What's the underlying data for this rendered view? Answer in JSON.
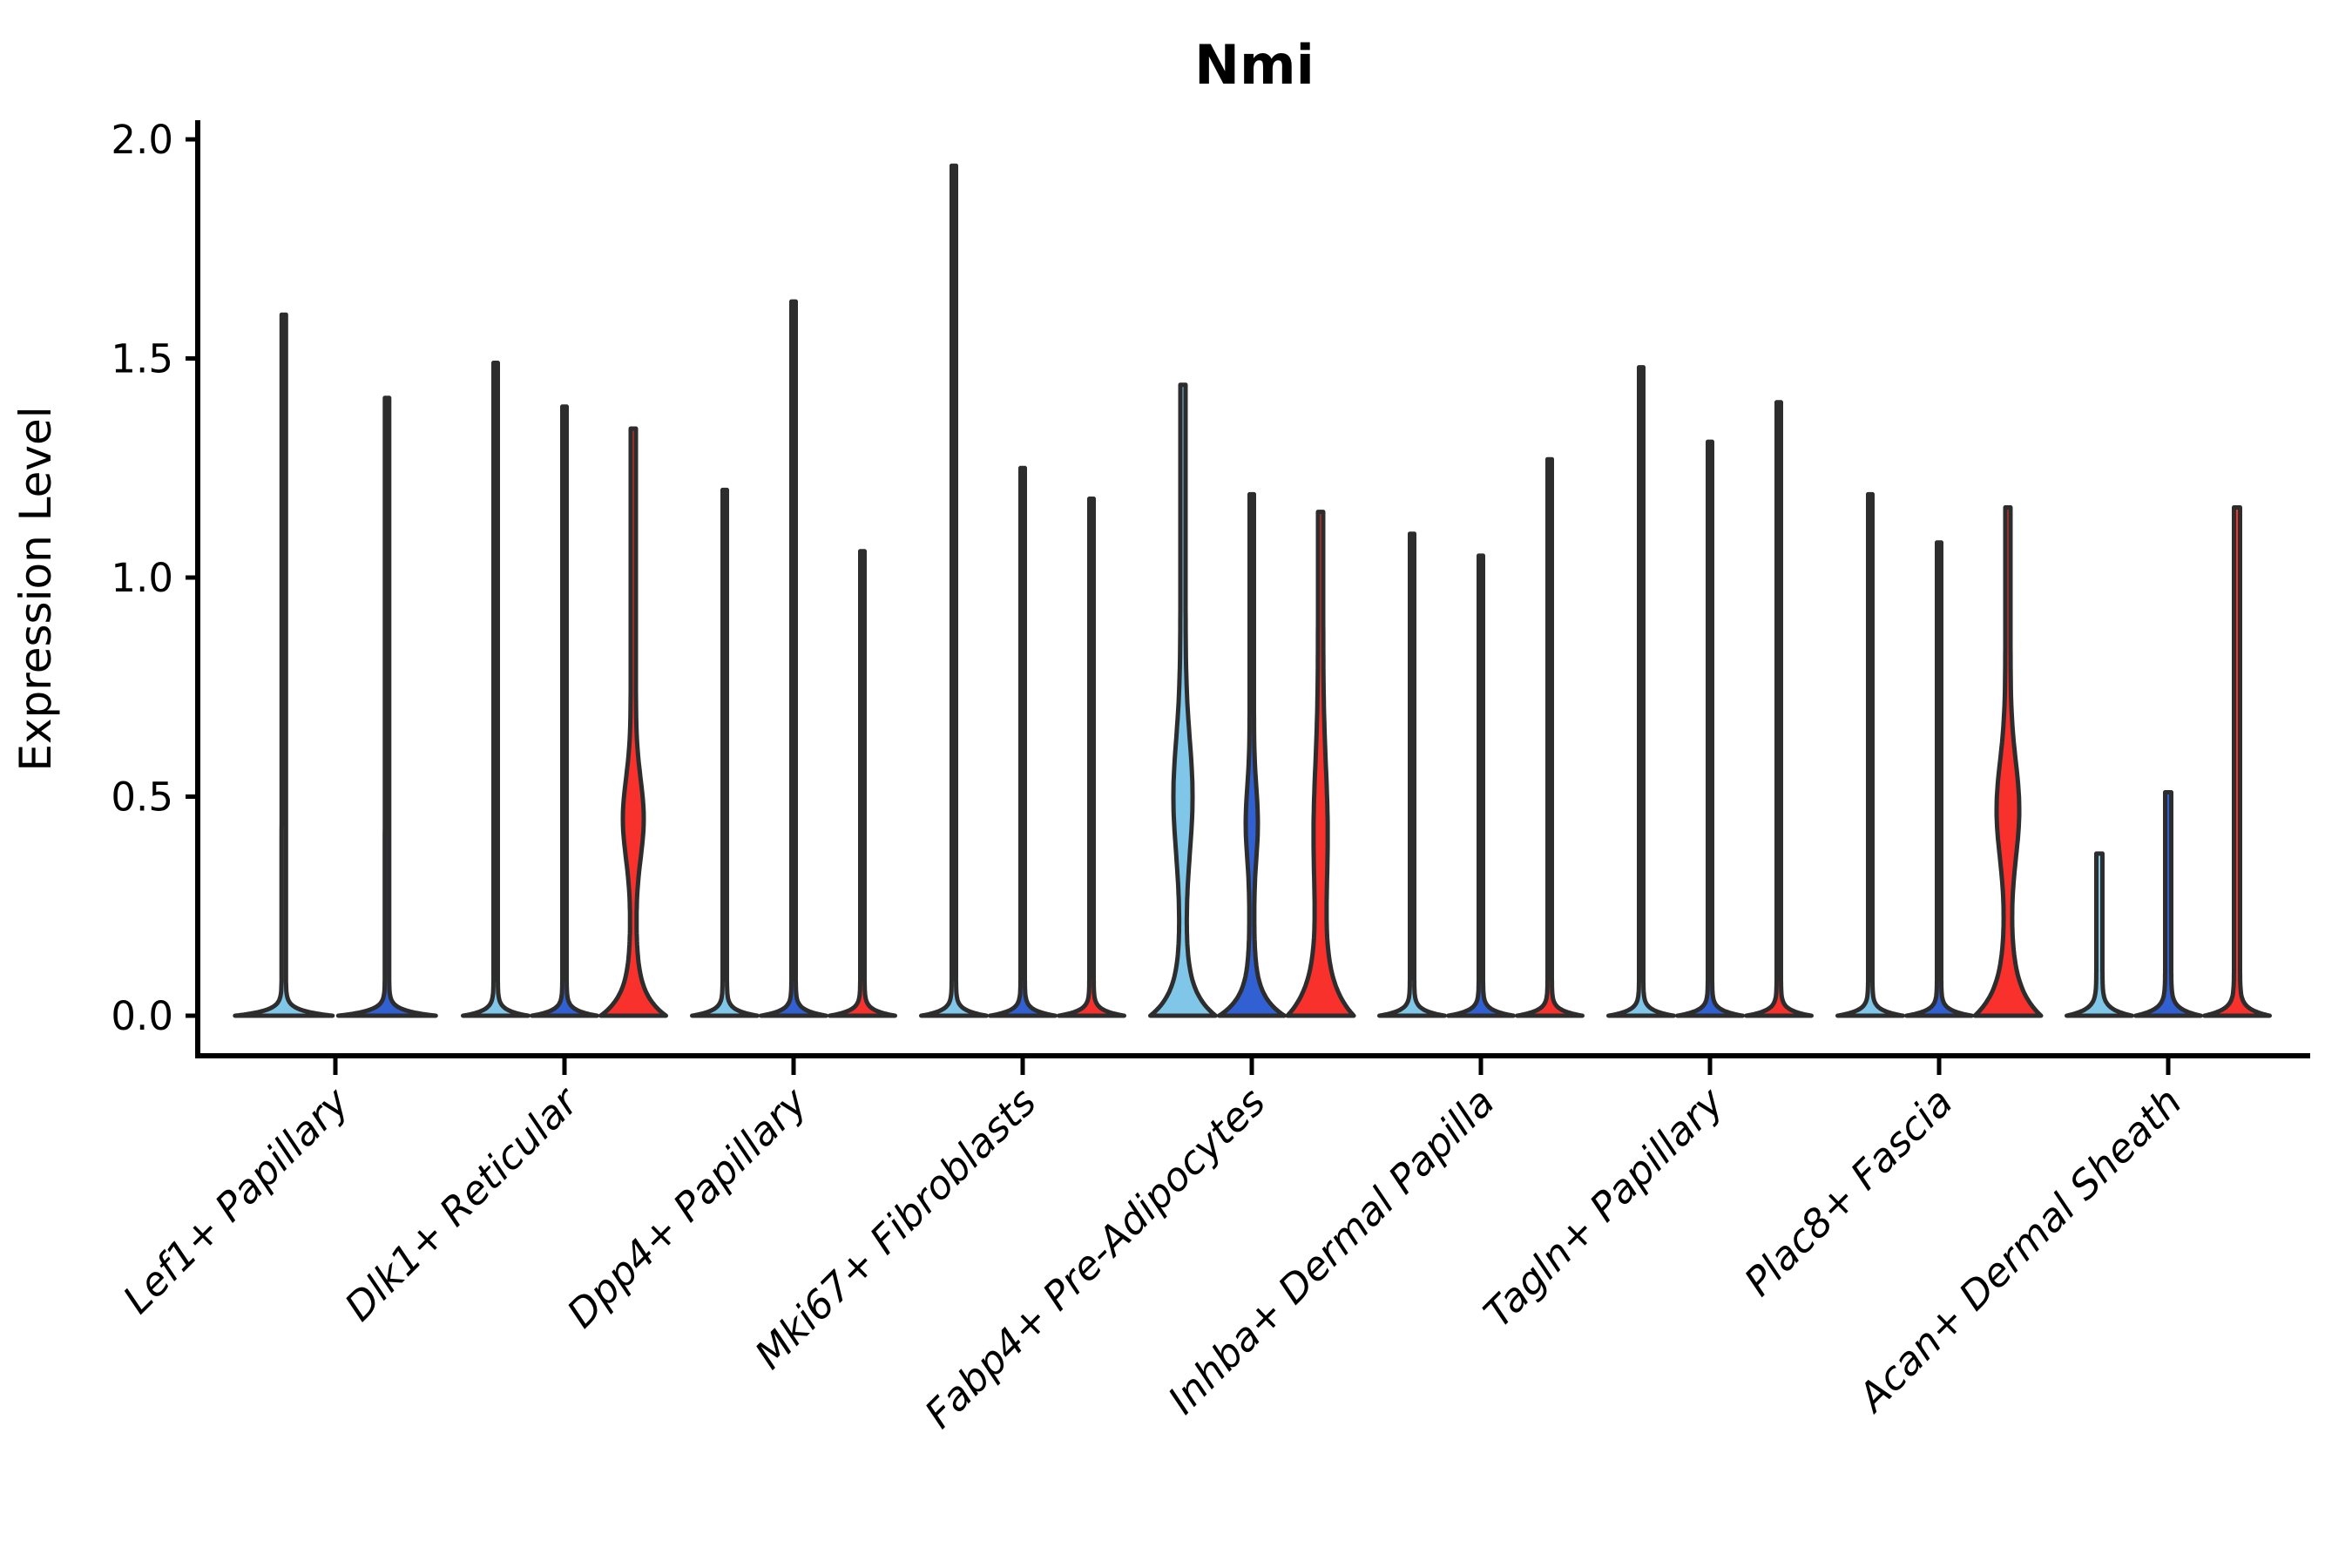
{
  "chart_data": {
    "type": "violin",
    "title": "Nmi",
    "xlabel": "",
    "ylabel": "Expression Level",
    "ylim": [
      0,
      2.0
    ],
    "yticks": [
      0.0,
      0.5,
      1.0,
      1.5,
      2.0
    ],
    "ytick_labels": [
      "0.0",
      "0.5",
      "1.0",
      "1.5",
      "2.0"
    ],
    "grid": "off",
    "legend": "none",
    "categories": [
      "Lef1+ Papillary",
      "Dlk1+ Reticular",
      "Dpp4+ Papillary",
      "Mki67+ Fibroblasts",
      "Fabp4+ Pre-Adipocytes",
      "Inhba+ Dermal Papilla",
      "Tagln+ Papillary",
      "Plac8+ Fascia",
      "Acan+ Dermal Sheath"
    ],
    "groups": [
      {
        "name": "group-1",
        "color": "#7FC6E8"
      },
      {
        "name": "group-2",
        "color": "#3060D2"
      },
      {
        "name": "group-3",
        "color": "#F9312C"
      }
    ],
    "outline_color": "#2D2D2D",
    "axis_color": "#000000",
    "violins": [
      {
        "category": 0,
        "group": 0,
        "max_expression": 1.6,
        "profile": {
          "stem_hw": 2.5,
          "base_hw": 56,
          "flare_decay": 0.012,
          "bump_amp": 0,
          "bump_center": 0,
          "bump_width": 1
        }
      },
      {
        "category": 0,
        "group": 1,
        "max_expression": 1.41,
        "profile": {
          "stem_hw": 2.5,
          "base_hw": 56,
          "flare_decay": 0.012,
          "bump_amp": 0,
          "bump_center": 0,
          "bump_width": 1
        }
      },
      {
        "category": 1,
        "group": 0,
        "max_expression": 1.49,
        "profile": {
          "stem_hw": 2.5,
          "base_hw": 37.5,
          "flare_decay": 0.012,
          "bump_amp": 0,
          "bump_center": 0,
          "bump_width": 1
        }
      },
      {
        "category": 1,
        "group": 1,
        "max_expression": 1.39,
        "profile": {
          "stem_hw": 2.5,
          "base_hw": 37.5,
          "flare_decay": 0.012,
          "bump_amp": 0,
          "bump_center": 0,
          "bump_width": 1
        }
      },
      {
        "category": 1,
        "group": 2,
        "max_expression": 1.34,
        "profile": {
          "stem_hw": 3,
          "base_hw": 37.5,
          "flare_decay": 0.05,
          "bump_amp": 9,
          "bump_center": 0.45,
          "bump_width": 0.09
        }
      },
      {
        "category": 2,
        "group": 0,
        "max_expression": 1.2,
        "profile": {
          "stem_hw": 2.5,
          "base_hw": 37.5,
          "flare_decay": 0.012,
          "bump_amp": 0,
          "bump_center": 0,
          "bump_width": 1
        }
      },
      {
        "category": 2,
        "group": 1,
        "max_expression": 1.63,
        "profile": {
          "stem_hw": 2.5,
          "base_hw": 37.5,
          "flare_decay": 0.012,
          "bump_amp": 0,
          "bump_center": 0,
          "bump_width": 1
        }
      },
      {
        "category": 2,
        "group": 2,
        "max_expression": 1.06,
        "profile": {
          "stem_hw": 2.5,
          "base_hw": 37.5,
          "flare_decay": 0.012,
          "bump_amp": 0,
          "bump_center": 0,
          "bump_width": 1
        }
      },
      {
        "category": 3,
        "group": 0,
        "max_expression": 1.94,
        "profile": {
          "stem_hw": 2.5,
          "base_hw": 37.5,
          "flare_decay": 0.012,
          "bump_amp": 0,
          "bump_center": 0,
          "bump_width": 1
        }
      },
      {
        "category": 3,
        "group": 1,
        "max_expression": 1.25,
        "profile": {
          "stem_hw": 2.5,
          "base_hw": 37.5,
          "flare_decay": 0.012,
          "bump_amp": 0,
          "bump_center": 0,
          "bump_width": 1
        }
      },
      {
        "category": 3,
        "group": 2,
        "max_expression": 1.18,
        "profile": {
          "stem_hw": 2.5,
          "base_hw": 37.5,
          "flare_decay": 0.012,
          "bump_amp": 0,
          "bump_center": 0,
          "bump_width": 1
        }
      },
      {
        "category": 4,
        "group": 0,
        "max_expression": 1.44,
        "profile": {
          "stem_hw": 3,
          "base_hw": 37.5,
          "flare_decay": 0.055,
          "bump_amp": 8,
          "bump_center": 0.5,
          "bump_width": 0.13
        }
      },
      {
        "category": 4,
        "group": 1,
        "max_expression": 1.19,
        "profile": {
          "stem_hw": 2.5,
          "base_hw": 37.5,
          "flare_decay": 0.045,
          "bump_amp": 4.5,
          "bump_center": 0.44,
          "bump_width": 0.08
        }
      },
      {
        "category": 4,
        "group": 2,
        "max_expression": 1.15,
        "profile": {
          "stem_hw": 3,
          "base_hw": 38,
          "flare_decay": 0.075,
          "bump_amp": 5,
          "bump_center": 0.42,
          "bump_width": 0.15
        }
      },
      {
        "category": 5,
        "group": 0,
        "max_expression": 1.1,
        "profile": {
          "stem_hw": 2.5,
          "base_hw": 37.5,
          "flare_decay": 0.012,
          "bump_amp": 0,
          "bump_center": 0,
          "bump_width": 1
        }
      },
      {
        "category": 5,
        "group": 1,
        "max_expression": 1.05,
        "profile": {
          "stem_hw": 2.5,
          "base_hw": 37.5,
          "flare_decay": 0.012,
          "bump_amp": 0,
          "bump_center": 0,
          "bump_width": 1
        }
      },
      {
        "category": 5,
        "group": 2,
        "max_expression": 1.27,
        "profile": {
          "stem_hw": 2.5,
          "base_hw": 37.5,
          "flare_decay": 0.012,
          "bump_amp": 0,
          "bump_center": 0,
          "bump_width": 1
        }
      },
      {
        "category": 6,
        "group": 0,
        "max_expression": 1.48,
        "profile": {
          "stem_hw": 2.5,
          "base_hw": 37.5,
          "flare_decay": 0.012,
          "bump_amp": 0,
          "bump_center": 0,
          "bump_width": 1
        }
      },
      {
        "category": 6,
        "group": 1,
        "max_expression": 1.31,
        "profile": {
          "stem_hw": 2.5,
          "base_hw": 37.5,
          "flare_decay": 0.012,
          "bump_amp": 0,
          "bump_center": 0,
          "bump_width": 1
        }
      },
      {
        "category": 6,
        "group": 2,
        "max_expression": 1.4,
        "profile": {
          "stem_hw": 2.5,
          "base_hw": 37.5,
          "flare_decay": 0.012,
          "bump_amp": 0,
          "bump_center": 0,
          "bump_width": 1
        }
      },
      {
        "category": 7,
        "group": 0,
        "max_expression": 1.19,
        "profile": {
          "stem_hw": 2.5,
          "base_hw": 37.5,
          "flare_decay": 0.012,
          "bump_amp": 0,
          "bump_center": 0,
          "bump_width": 1
        }
      },
      {
        "category": 7,
        "group": 1,
        "max_expression": 1.08,
        "profile": {
          "stem_hw": 2.5,
          "base_hw": 37.5,
          "flare_decay": 0.012,
          "bump_amp": 0,
          "bump_center": 0,
          "bump_width": 1
        }
      },
      {
        "category": 7,
        "group": 2,
        "max_expression": 1.16,
        "profile": {
          "stem_hw": 3,
          "base_hw": 38,
          "flare_decay": 0.065,
          "bump_amp": 10,
          "bump_center": 0.47,
          "bump_width": 0.11
        }
      },
      {
        "category": 8,
        "group": 0,
        "max_expression": 0.37,
        "profile": {
          "stem_hw": 3.5,
          "base_hw": 37.5,
          "flare_decay": 0.015,
          "bump_amp": 0,
          "bump_center": 0,
          "bump_width": 1
        }
      },
      {
        "category": 8,
        "group": 1,
        "max_expression": 0.51,
        "profile": {
          "stem_hw": 3.5,
          "base_hw": 37.5,
          "flare_decay": 0.015,
          "bump_amp": 0,
          "bump_center": 0,
          "bump_width": 1
        }
      },
      {
        "category": 8,
        "group": 2,
        "max_expression": 1.16,
        "profile": {
          "stem_hw": 3.5,
          "base_hw": 37.5,
          "flare_decay": 0.015,
          "bump_amp": 0,
          "bump_center": 0,
          "bump_width": 1
        }
      }
    ]
  }
}
